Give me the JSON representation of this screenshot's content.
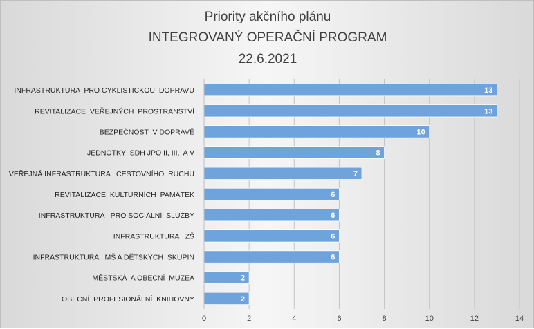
{
  "chart_data": {
    "type": "bar",
    "orientation": "horizontal",
    "title_lines": [
      "Priority akčního plánu",
      "INTEGROVANÝ OPERAČNÍ PROGRAM",
      "22.6.2021"
    ],
    "categories": [
      "INFRASTRUKTURA  PRO CYKLISTICKOU  DOPRAVU",
      "REVITALIZACE  VEŘEJNÝCH  PROSTRANSTVÍ",
      "BEZPEČNOST  V DOPRAVĚ",
      "JEDNOTKY  SDH JPO II, III,  A V",
      "VEŘEJNÁ INFRASTRUKTURA   CESTOVNÍHO  RUCHU",
      "REVITALIZACE  KULTURNÍCH  PAMÁTEK",
      "INFRASTRUKTURA   PRO SOCIÁLNÍ  SLUŽBY",
      "INFRASTRUKTURA   ZŠ",
      "INFRASTRUKTURA   MŠ A DĚTSKÝCH  SKUPIN",
      "MĚSTSKÁ  A OBECNÍ  MUZEA",
      "OBECNÍ  PROFESIONÁLNÍ  KNIHOVNY"
    ],
    "values": [
      13,
      13,
      10,
      8,
      7,
      6,
      6,
      6,
      6,
      2,
      2
    ],
    "xlim": [
      0,
      14
    ],
    "xticks": [
      0,
      2,
      4,
      6,
      8,
      10,
      12,
      14
    ],
    "grid": true,
    "legend": "none",
    "bar_color": "#6fa3dc",
    "label_color": "#ffffff"
  }
}
